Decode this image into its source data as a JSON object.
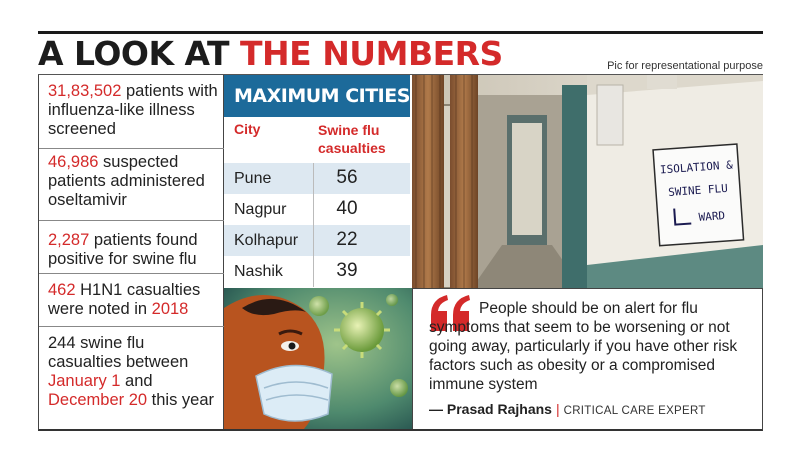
{
  "headline": {
    "dark": "A LOOK AT ",
    "red": "THE NUMBERS"
  },
  "credit": "Pic for representational purpose",
  "stats": [
    {
      "num": "31,83,502",
      "text": " patients with influenza-like illness screened"
    },
    {
      "num": "46,986",
      "text": " suspected patients administered oseltamivir"
    },
    {
      "num": "2,287",
      "text": " patients found positive for swine flu"
    },
    {
      "num": "462",
      "text": " H1N1 casualties were noted in ",
      "num2": "2018"
    },
    {
      "pre": "244 swine flu casualties between ",
      "num": "January 1",
      "mid": " and ",
      "num2": "December 20",
      "text": " this year"
    }
  ],
  "table": {
    "title": "MAXIMUM CITIES",
    "col_city": "City",
    "col_casualties_1": "Swine flu",
    "col_casualties_2": "casualties",
    "rows": [
      {
        "city": "Pune",
        "value": "56"
      },
      {
        "city": "Nagpur",
        "value": "40"
      },
      {
        "city": "Kolhapur",
        "value": "22"
      },
      {
        "city": "Nashik",
        "value": "39"
      }
    ]
  },
  "ward_sign": {
    "line1": "ISOLATION &",
    "line2": "SWINE FLU",
    "line3": "WARD"
  },
  "quote": {
    "text": "People should be on alert for flu symptoms that seem to be worsening or not going away, particularly if you have other risk factors such as obesity or a compromised immune system",
    "dash": "— ",
    "name": "Prasad Rajhans",
    "separator": "|",
    "role": "CRITICAL CARE EXPERT"
  },
  "colors": {
    "accent_red": "#d42a2a",
    "table_blue": "#1c6a9a",
    "row_alt": "#dde8f1"
  }
}
